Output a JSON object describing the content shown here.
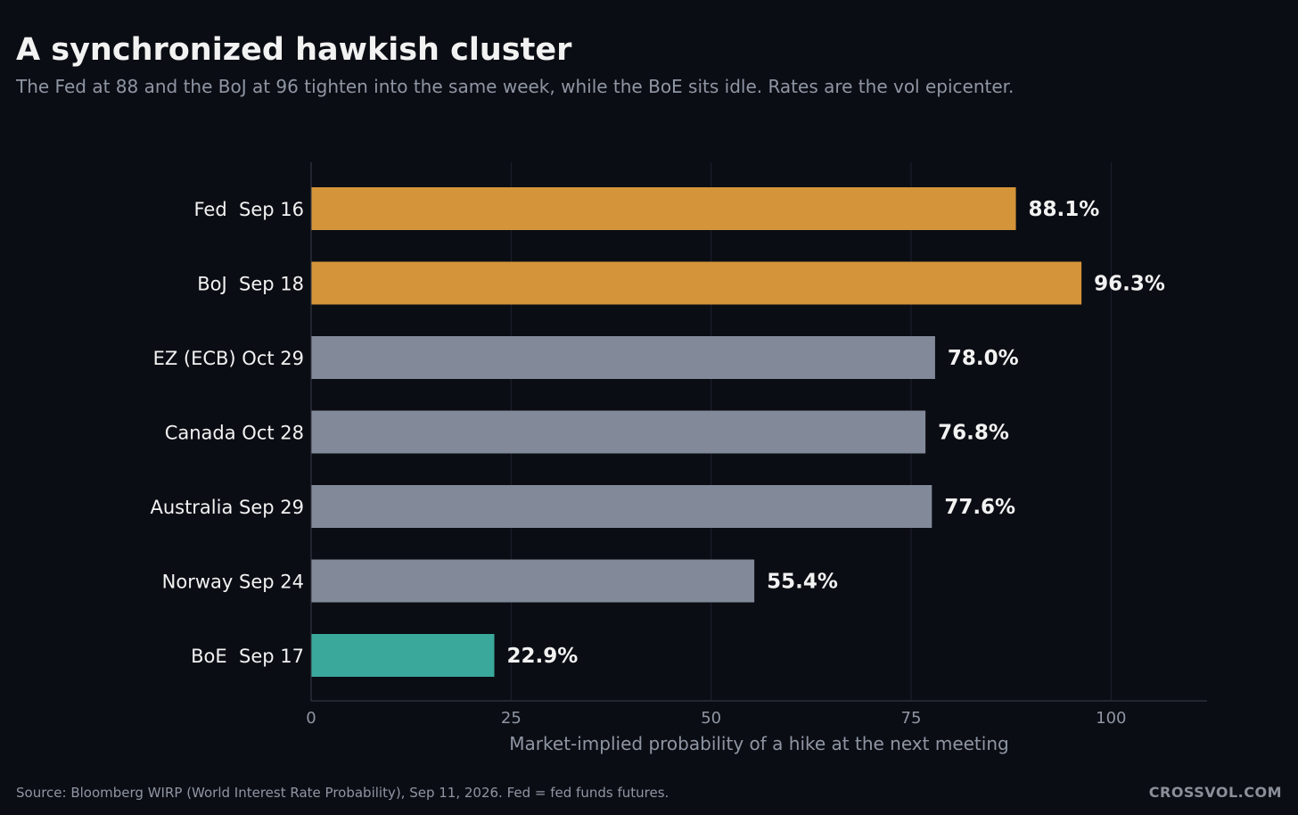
{
  "header": {
    "title": "A synchronized hawkish cluster",
    "subtitle": "The Fed at 88 and the BoJ at 96 tighten into the same week, while the BoE sits idle. Rates are the vol epicenter."
  },
  "footer": {
    "source": "Source: Bloomberg WIRP (World Interest Rate Probability), Sep 11, 2026. Fed = fed funds futures.",
    "brand": "CROSSVOL.COM"
  },
  "colors": {
    "background": "#0b0d14",
    "highlight": "#d4943a",
    "neutral": "#828a9a",
    "low": "#3aa99b",
    "grid": "#1e2230",
    "axis": "#3a3f4d",
    "tick_text": "#8f96a3",
    "label_text": "#f2f2f2"
  },
  "chart_data": {
    "type": "bar",
    "orientation": "horizontal",
    "categories": [
      "Fed  Sep 16",
      "BoJ  Sep 18",
      "EZ (ECB) Oct 29",
      "Canada Oct 28",
      "Australia Sep 29",
      "Norway Sep 24",
      "BoE  Sep 17"
    ],
    "values": [
      88.1,
      96.3,
      78.0,
      76.8,
      77.6,
      55.4,
      22.9
    ],
    "value_labels": [
      "88.1%",
      "96.3%",
      "78.0%",
      "76.8%",
      "77.6%",
      "55.4%",
      "22.9%"
    ],
    "bar_colors": [
      "#d4943a",
      "#d4943a",
      "#828a9a",
      "#828a9a",
      "#828a9a",
      "#828a9a",
      "#3aa99b"
    ],
    "xlabel": "Market-implied probability of a hike at the next meeting",
    "ylabel": "",
    "xlim": [
      0,
      112
    ],
    "xticks": [
      0,
      25,
      50,
      75,
      100
    ],
    "grid": "vertical",
    "legend": "none"
  }
}
